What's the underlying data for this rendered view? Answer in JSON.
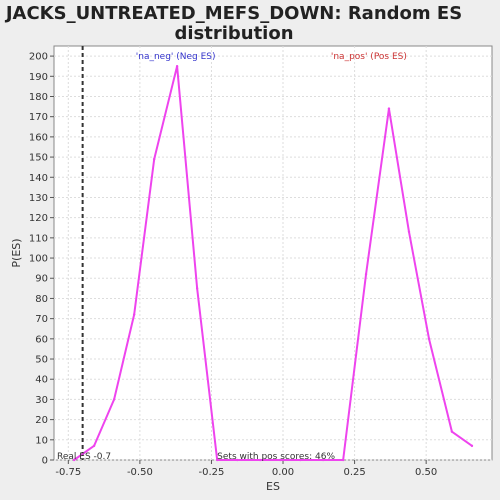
{
  "chart_data": {
    "type": "line",
    "title": "JACKS_UNTREATED_MEFS_DOWN: Random ES distribution",
    "xlabel": "ES",
    "ylabel": "P(ES)",
    "xlim": [
      -0.8,
      0.73
    ],
    "ylim": [
      0,
      205
    ],
    "x_ticks": [
      -0.75,
      -0.5,
      -0.25,
      0.0,
      0.25,
      0.5
    ],
    "x_tick_labels": [
      "-0.75",
      "-0.50",
      "-0.25",
      "0.00",
      "0.25",
      "0.50"
    ],
    "y_ticks": [
      0,
      10,
      20,
      30,
      40,
      50,
      60,
      70,
      80,
      90,
      100,
      110,
      120,
      130,
      140,
      150,
      160,
      170,
      180,
      190,
      200
    ],
    "grid": true,
    "series": [
      {
        "color": "#ee44ee",
        "x": [
          -0.73,
          -0.66,
          -0.59,
          -0.52,
          -0.45,
          -0.37,
          -0.3,
          -0.23,
          -0.16,
          -0.08,
          -0.01,
          0.06,
          0.14,
          0.21,
          0.29,
          0.37,
          0.44,
          0.51,
          0.59,
          0.66
        ],
        "y": [
          0,
          7,
          30,
          72,
          149,
          195,
          85,
          0,
          0,
          0,
          0,
          0,
          0,
          0,
          92,
          174,
          113,
          60,
          14,
          7
        ]
      }
    ],
    "real_es": {
      "x": -0.7,
      "label": "Real ES -0.7"
    },
    "annotations": {
      "neg_label": "'na_neg' (Neg ES)",
      "neg_color": "#3333cc",
      "pos_label": "'na_pos' (Pos ES)",
      "pos_color": "#cc3333",
      "pos_scores": "Sets with pos scores: 46%"
    }
  }
}
